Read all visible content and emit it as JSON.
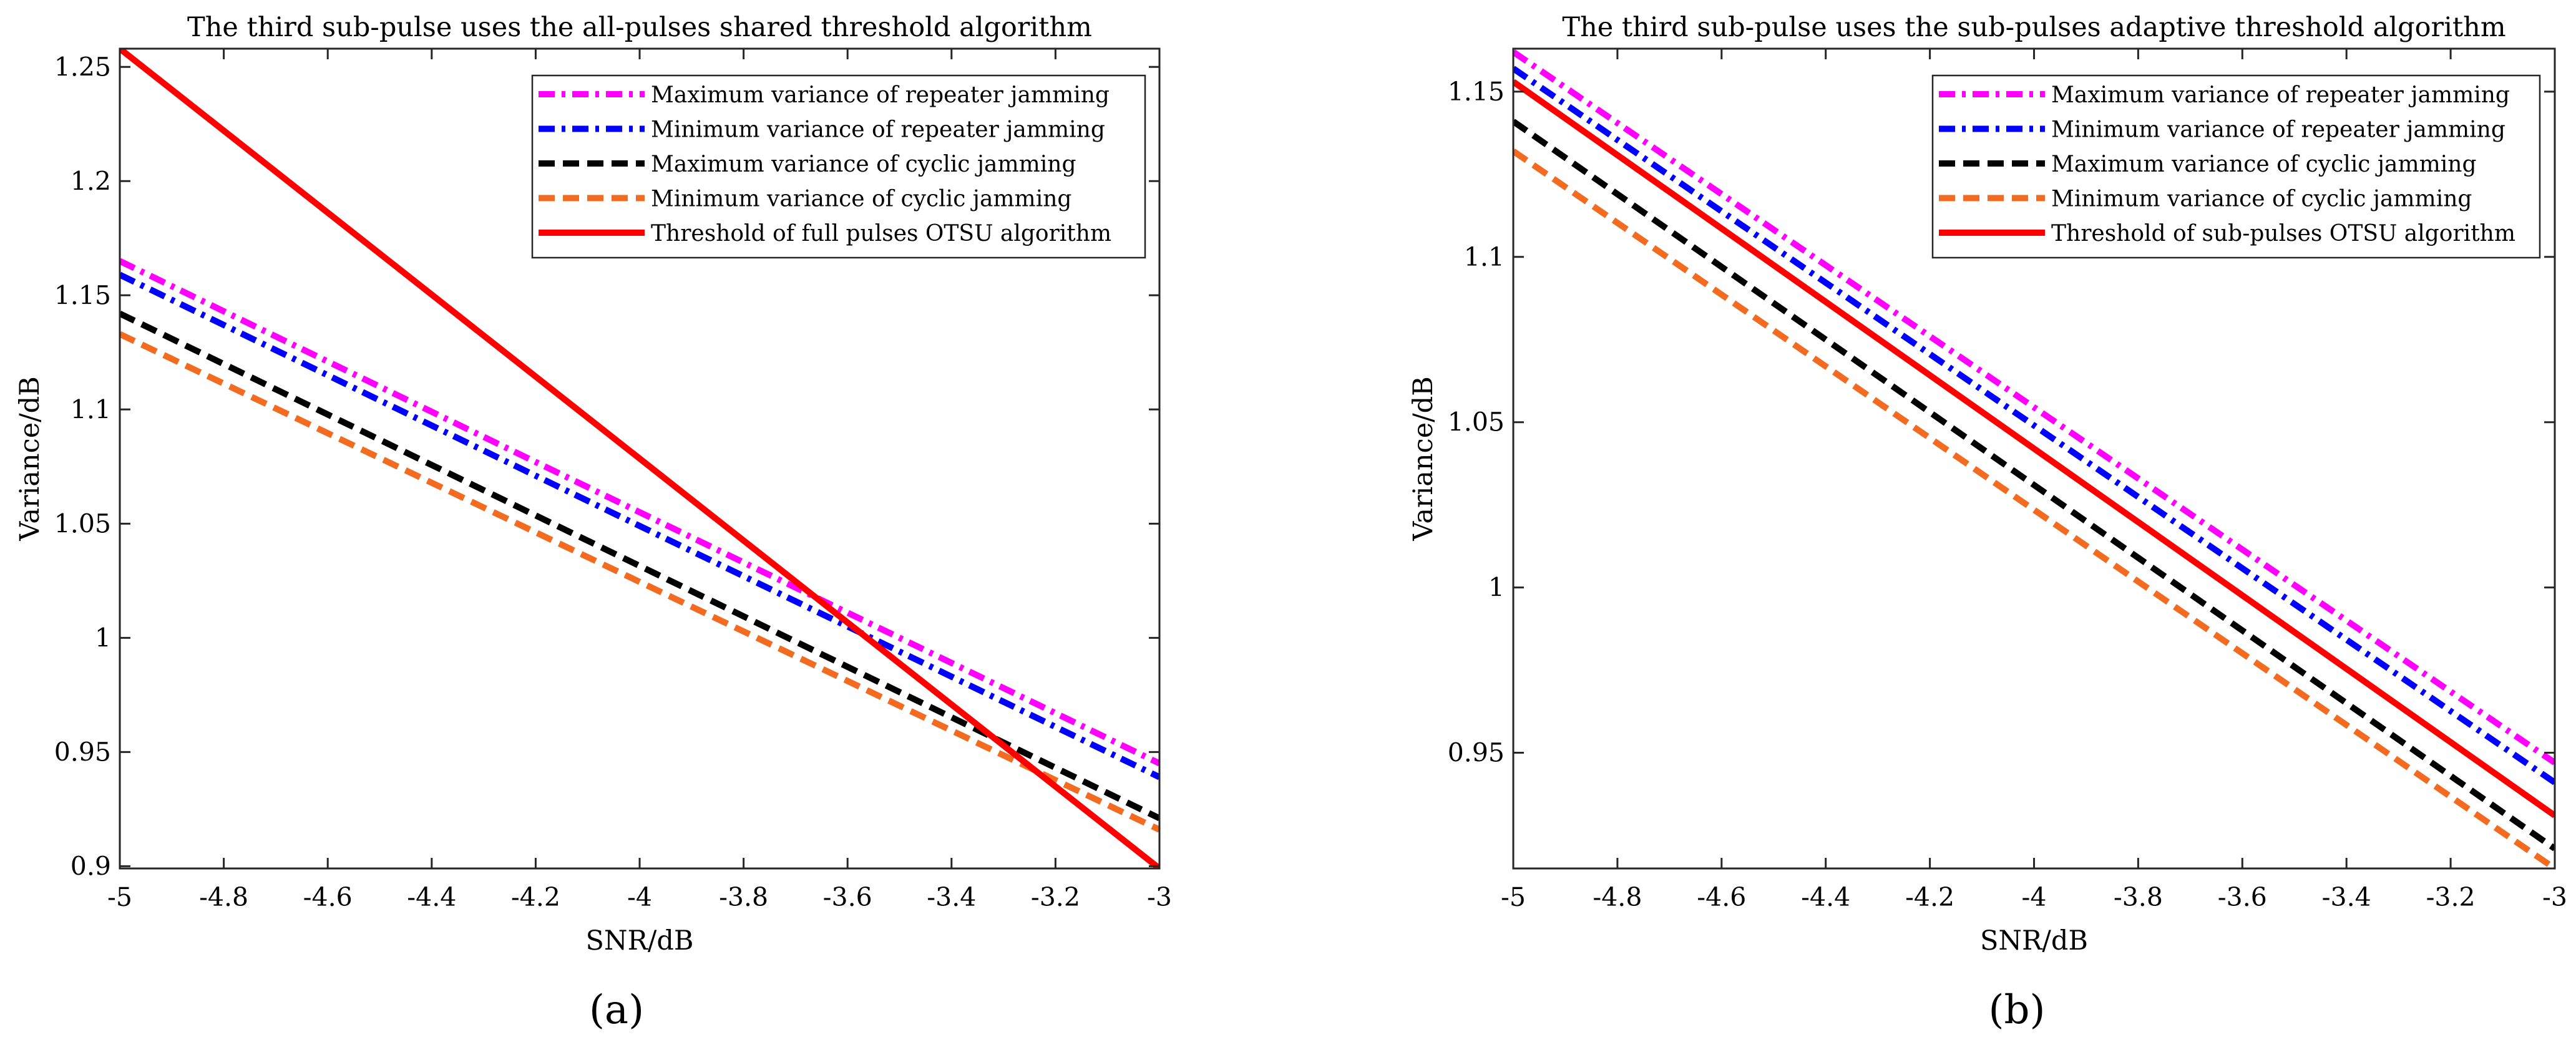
{
  "chart_data": [
    {
      "type": "line",
      "panel_label": "(a)",
      "title": "The third sub-pulse uses the all-pulses shared threshold algorithm",
      "xlabel": "SNR/dB",
      "ylabel": "Variance/dB",
      "xlim": [
        -5,
        -3
      ],
      "ylim": [
        0.899,
        1.258
      ],
      "xticks": [
        "-5",
        "-4.8",
        "-4.6",
        "-4.4",
        "-4.2",
        "-4",
        "-3.8",
        "-3.6",
        "-3.4",
        "-3.2",
        "-3"
      ],
      "yticks": [
        "0.9",
        "0.95",
        "1",
        "1.05",
        "1.1",
        "1.15",
        "1.2",
        "1.25"
      ],
      "legend_position": "top-right",
      "series": [
        {
          "name": "Maximum variance of repeater jamming",
          "color": "#ff00ff",
          "style": "dashdot",
          "x": [
            -5,
            -3
          ],
          "y": [
            1.165,
            0.945
          ]
        },
        {
          "name": "Minimum variance of repeater jamming",
          "color": "#0000ff",
          "style": "dashdot",
          "x": [
            -5,
            -3
          ],
          "y": [
            1.159,
            0.939
          ]
        },
        {
          "name": "Maximum variance of cyclic jamming",
          "color": "#000000",
          "style": "dashed",
          "x": [
            -5,
            -3
          ],
          "y": [
            1.142,
            0.921
          ]
        },
        {
          "name": "Minimum variance of cyclic jamming",
          "color": "#f26b21",
          "style": "dashed",
          "x": [
            -5,
            -3
          ],
          "y": [
            1.133,
            0.916
          ]
        },
        {
          "name": "Threshold of full pulses OTSU algorithm",
          "color": "#ff0000",
          "style": "solid",
          "x": [
            -5,
            -3
          ],
          "y": [
            1.258,
            0.899
          ]
        }
      ]
    },
    {
      "type": "line",
      "panel_label": "(b)",
      "title": "The third sub-pulse uses the sub-pulses adaptive threshold algorithm",
      "xlabel": "SNR/dB",
      "ylabel": "Variance/dB",
      "xlim": [
        -5,
        -3
      ],
      "ylim": [
        0.915,
        1.163
      ],
      "xticks": [
        "-5",
        "-4.8",
        "-4.6",
        "-4.4",
        "-4.2",
        "-4",
        "-3.8",
        "-3.6",
        "-3.4",
        "-3.2",
        "-3"
      ],
      "yticks": [
        "0.95",
        "1",
        "1.05",
        "1.1",
        "1.15"
      ],
      "legend_position": "top-right",
      "series": [
        {
          "name": "Maximum variance of repeater jamming",
          "color": "#ff00ff",
          "style": "dashdot",
          "x": [
            -5,
            -3
          ],
          "y": [
            1.162,
            0.947
          ]
        },
        {
          "name": "Minimum variance of repeater jamming",
          "color": "#0000ff",
          "style": "dashdot",
          "x": [
            -5,
            -3
          ],
          "y": [
            1.157,
            0.941
          ]
        },
        {
          "name": "Maximum variance of cyclic jamming",
          "color": "#000000",
          "style": "dashed",
          "x": [
            -5,
            -3
          ],
          "y": [
            1.141,
            0.921
          ]
        },
        {
          "name": "Minimum variance of cyclic jamming",
          "color": "#f26b21",
          "style": "dashed",
          "x": [
            -5,
            -3
          ],
          "y": [
            1.132,
            0.915
          ]
        },
        {
          "name": "Threshold of sub-pulses OTSU algorithm",
          "color": "#ff0000",
          "style": "solid",
          "x": [
            -5,
            -3
          ],
          "y": [
            1.153,
            0.931
          ]
        }
      ]
    }
  ]
}
